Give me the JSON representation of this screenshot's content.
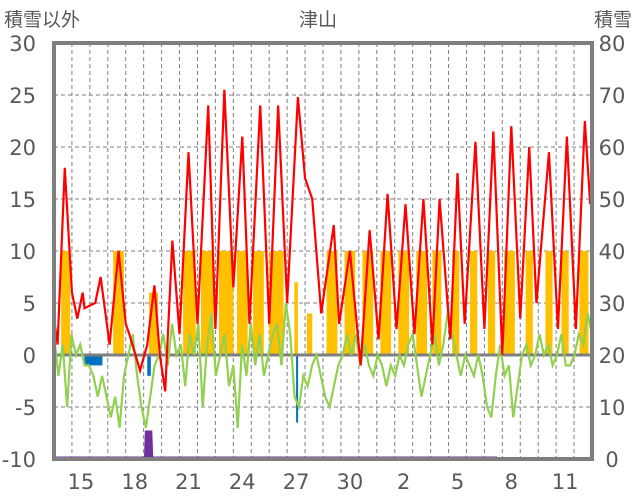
{
  "chart_data": {
    "type": "line",
    "title": "津山",
    "ylabel_left": "積雪以外",
    "ylabel_right": "積雪",
    "ylim_left": [
      -10,
      30
    ],
    "ylim_right": [
      0,
      80
    ],
    "yticks_left": [
      "30",
      "25",
      "20",
      "15",
      "10",
      "5",
      "0",
      "-5",
      "-10"
    ],
    "yticks_right": [
      "80",
      "70",
      "60",
      "50",
      "40",
      "30",
      "20",
      "10",
      "0"
    ],
    "x_range_days": [
      14,
      44
    ],
    "xtick_labels": [
      {
        "day": 15,
        "label": "15"
      },
      {
        "day": 18,
        "label": "18"
      },
      {
        "day": 21,
        "label": "21"
      },
      {
        "day": 24,
        "label": "24"
      },
      {
        "day": 27,
        "label": "27"
      },
      {
        "day": 30,
        "label": "30"
      },
      {
        "day": 33,
        "label": "2"
      },
      {
        "day": 36,
        "label": "5"
      },
      {
        "day": 39,
        "label": "8"
      },
      {
        "day": 42,
        "label": "11"
      }
    ],
    "grid": true,
    "colors": {
      "red": "#ff0000",
      "green": "#92d050",
      "yellow": "#ffc000",
      "blue": "#0070c0",
      "purple": "#7030a0",
      "axis": "#7f7f7f"
    },
    "series_red": [
      [
        14.0,
        3.5
      ],
      [
        14.2,
        1
      ],
      [
        14.6,
        18
      ],
      [
        15.0,
        6
      ],
      [
        15.3,
        3.5
      ],
      [
        15.6,
        6
      ],
      [
        15.7,
        4.5
      ],
      [
        16.3,
        5
      ],
      [
        16.6,
        7.5
      ],
      [
        17.1,
        1
      ],
      [
        17.6,
        10
      ],
      [
        18.0,
        3
      ],
      [
        18.2,
        2
      ],
      [
        18.8,
        -1.5
      ],
      [
        19.2,
        1
      ],
      [
        19.6,
        6.7
      ],
      [
        19.9,
        0
      ],
      [
        20.2,
        -3.5
      ],
      [
        20.6,
        11
      ],
      [
        21.0,
        2
      ],
      [
        21.5,
        19.5
      ],
      [
        22.0,
        3
      ],
      [
        22.6,
        24
      ],
      [
        23.0,
        2.5
      ],
      [
        23.5,
        25.5
      ],
      [
        24.0,
        6.5
      ],
      [
        24.5,
        21
      ],
      [
        24.9,
        3
      ],
      [
        25.5,
        24
      ],
      [
        26.0,
        3
      ],
      [
        26.5,
        24
      ],
      [
        27.0,
        5
      ],
      [
        27.6,
        24.8
      ],
      [
        28.0,
        17
      ],
      [
        28.4,
        15
      ],
      [
        28.9,
        4
      ],
      [
        29.6,
        12.5
      ],
      [
        29.9,
        3
      ],
      [
        30.5,
        10
      ],
      [
        31.1,
        -1
      ],
      [
        31.6,
        12
      ],
      [
        32.1,
        1.5
      ],
      [
        32.6,
        15.5
      ],
      [
        33.1,
        2.5
      ],
      [
        33.6,
        14.5
      ],
      [
        34.1,
        2
      ],
      [
        34.6,
        15
      ],
      [
        35.1,
        1
      ],
      [
        35.5,
        15
      ],
      [
        36.1,
        1.5
      ],
      [
        36.5,
        17.5
      ],
      [
        36.9,
        3
      ],
      [
        37.5,
        20.5
      ],
      [
        38.0,
        2.5
      ],
      [
        38.5,
        21.5
      ],
      [
        39.0,
        0
      ],
      [
        39.5,
        22
      ],
      [
        40.0,
        3.5
      ],
      [
        40.5,
        20
      ],
      [
        40.9,
        5
      ],
      [
        41.6,
        19.5
      ],
      [
        42.1,
        2.5
      ],
      [
        42.6,
        21
      ],
      [
        43.1,
        2.5
      ],
      [
        43.6,
        22.5
      ],
      [
        43.9,
        14.5
      ]
    ],
    "series_green": [
      2,
      -2,
      1,
      -5,
      2,
      0,
      1,
      -1,
      -1,
      -2,
      -4,
      -2,
      -4,
      -6,
      -4,
      -7,
      -2,
      0,
      2,
      -2,
      -5,
      -7,
      -4,
      -1,
      0,
      2,
      -1,
      3,
      0,
      1,
      -3,
      2,
      0,
      3,
      -5,
      1,
      4,
      -2,
      0,
      2,
      -3,
      -1,
      -7,
      1,
      -2,
      3,
      -1,
      2,
      -2,
      0,
      2,
      3,
      -1,
      5,
      2,
      -4,
      -5,
      -2,
      -3,
      -1,
      0,
      -2,
      -4,
      -5,
      -3,
      -1,
      0,
      2,
      0,
      2,
      -1,
      1,
      -1,
      -2,
      0,
      -1,
      -3,
      -1,
      -2,
      0,
      -1,
      1,
      2,
      -1,
      -4,
      -2,
      0,
      2,
      -1,
      1,
      4,
      2,
      0,
      -2,
      0,
      -1,
      -2,
      0,
      -2,
      -5,
      -6,
      -2,
      1,
      -2,
      -1,
      -6,
      -3,
      0,
      1,
      -1,
      0,
      2,
      0,
      1,
      -1,
      0,
      2,
      -1,
      -1,
      0,
      2,
      1,
      4,
      2
    ],
    "bars_yellow": [
      [
        14.4,
        14.9,
        10
      ],
      [
        17.3,
        17.9,
        10
      ],
      [
        19.3,
        19.8,
        6
      ],
      [
        21.2,
        21.9,
        10
      ],
      [
        22.2,
        22.9,
        10
      ],
      [
        23.2,
        24.0,
        10
      ],
      [
        24.2,
        24.8,
        10
      ],
      [
        25.1,
        25.7,
        10
      ],
      [
        26.0,
        26.8,
        10
      ],
      [
        27.4,
        27.6,
        7
      ],
      [
        28.1,
        28.4,
        4
      ],
      [
        29.2,
        29.8,
        10
      ],
      [
        30.2,
        30.8,
        10
      ],
      [
        31.2,
        31.8,
        10
      ],
      [
        32.2,
        32.8,
        10
      ],
      [
        33.2,
        33.8,
        10
      ],
      [
        34.2,
        34.8,
        10
      ],
      [
        35.1,
        35.6,
        10
      ],
      [
        36.2,
        36.6,
        10
      ],
      [
        37.2,
        37.6,
        10
      ],
      [
        38.2,
        38.6,
        10
      ],
      [
        39.1,
        39.7,
        10
      ],
      [
        40.3,
        40.7,
        10
      ],
      [
        41.4,
        41.8,
        10
      ],
      [
        42.3,
        42.7,
        10
      ],
      [
        43.3,
        43.8,
        10
      ]
    ],
    "bars_blue": [
      [
        15.7,
        16.7,
        -1
      ],
      [
        19.2,
        19.4,
        -2
      ],
      [
        27.5,
        27.6,
        -6.5
      ]
    ],
    "series_purple_snow": [
      [
        14,
        0
      ],
      [
        19.1,
        0
      ],
      [
        19.15,
        5
      ],
      [
        19.4,
        5
      ],
      [
        19.45,
        0
      ],
      [
        38.7,
        0
      ]
    ]
  }
}
